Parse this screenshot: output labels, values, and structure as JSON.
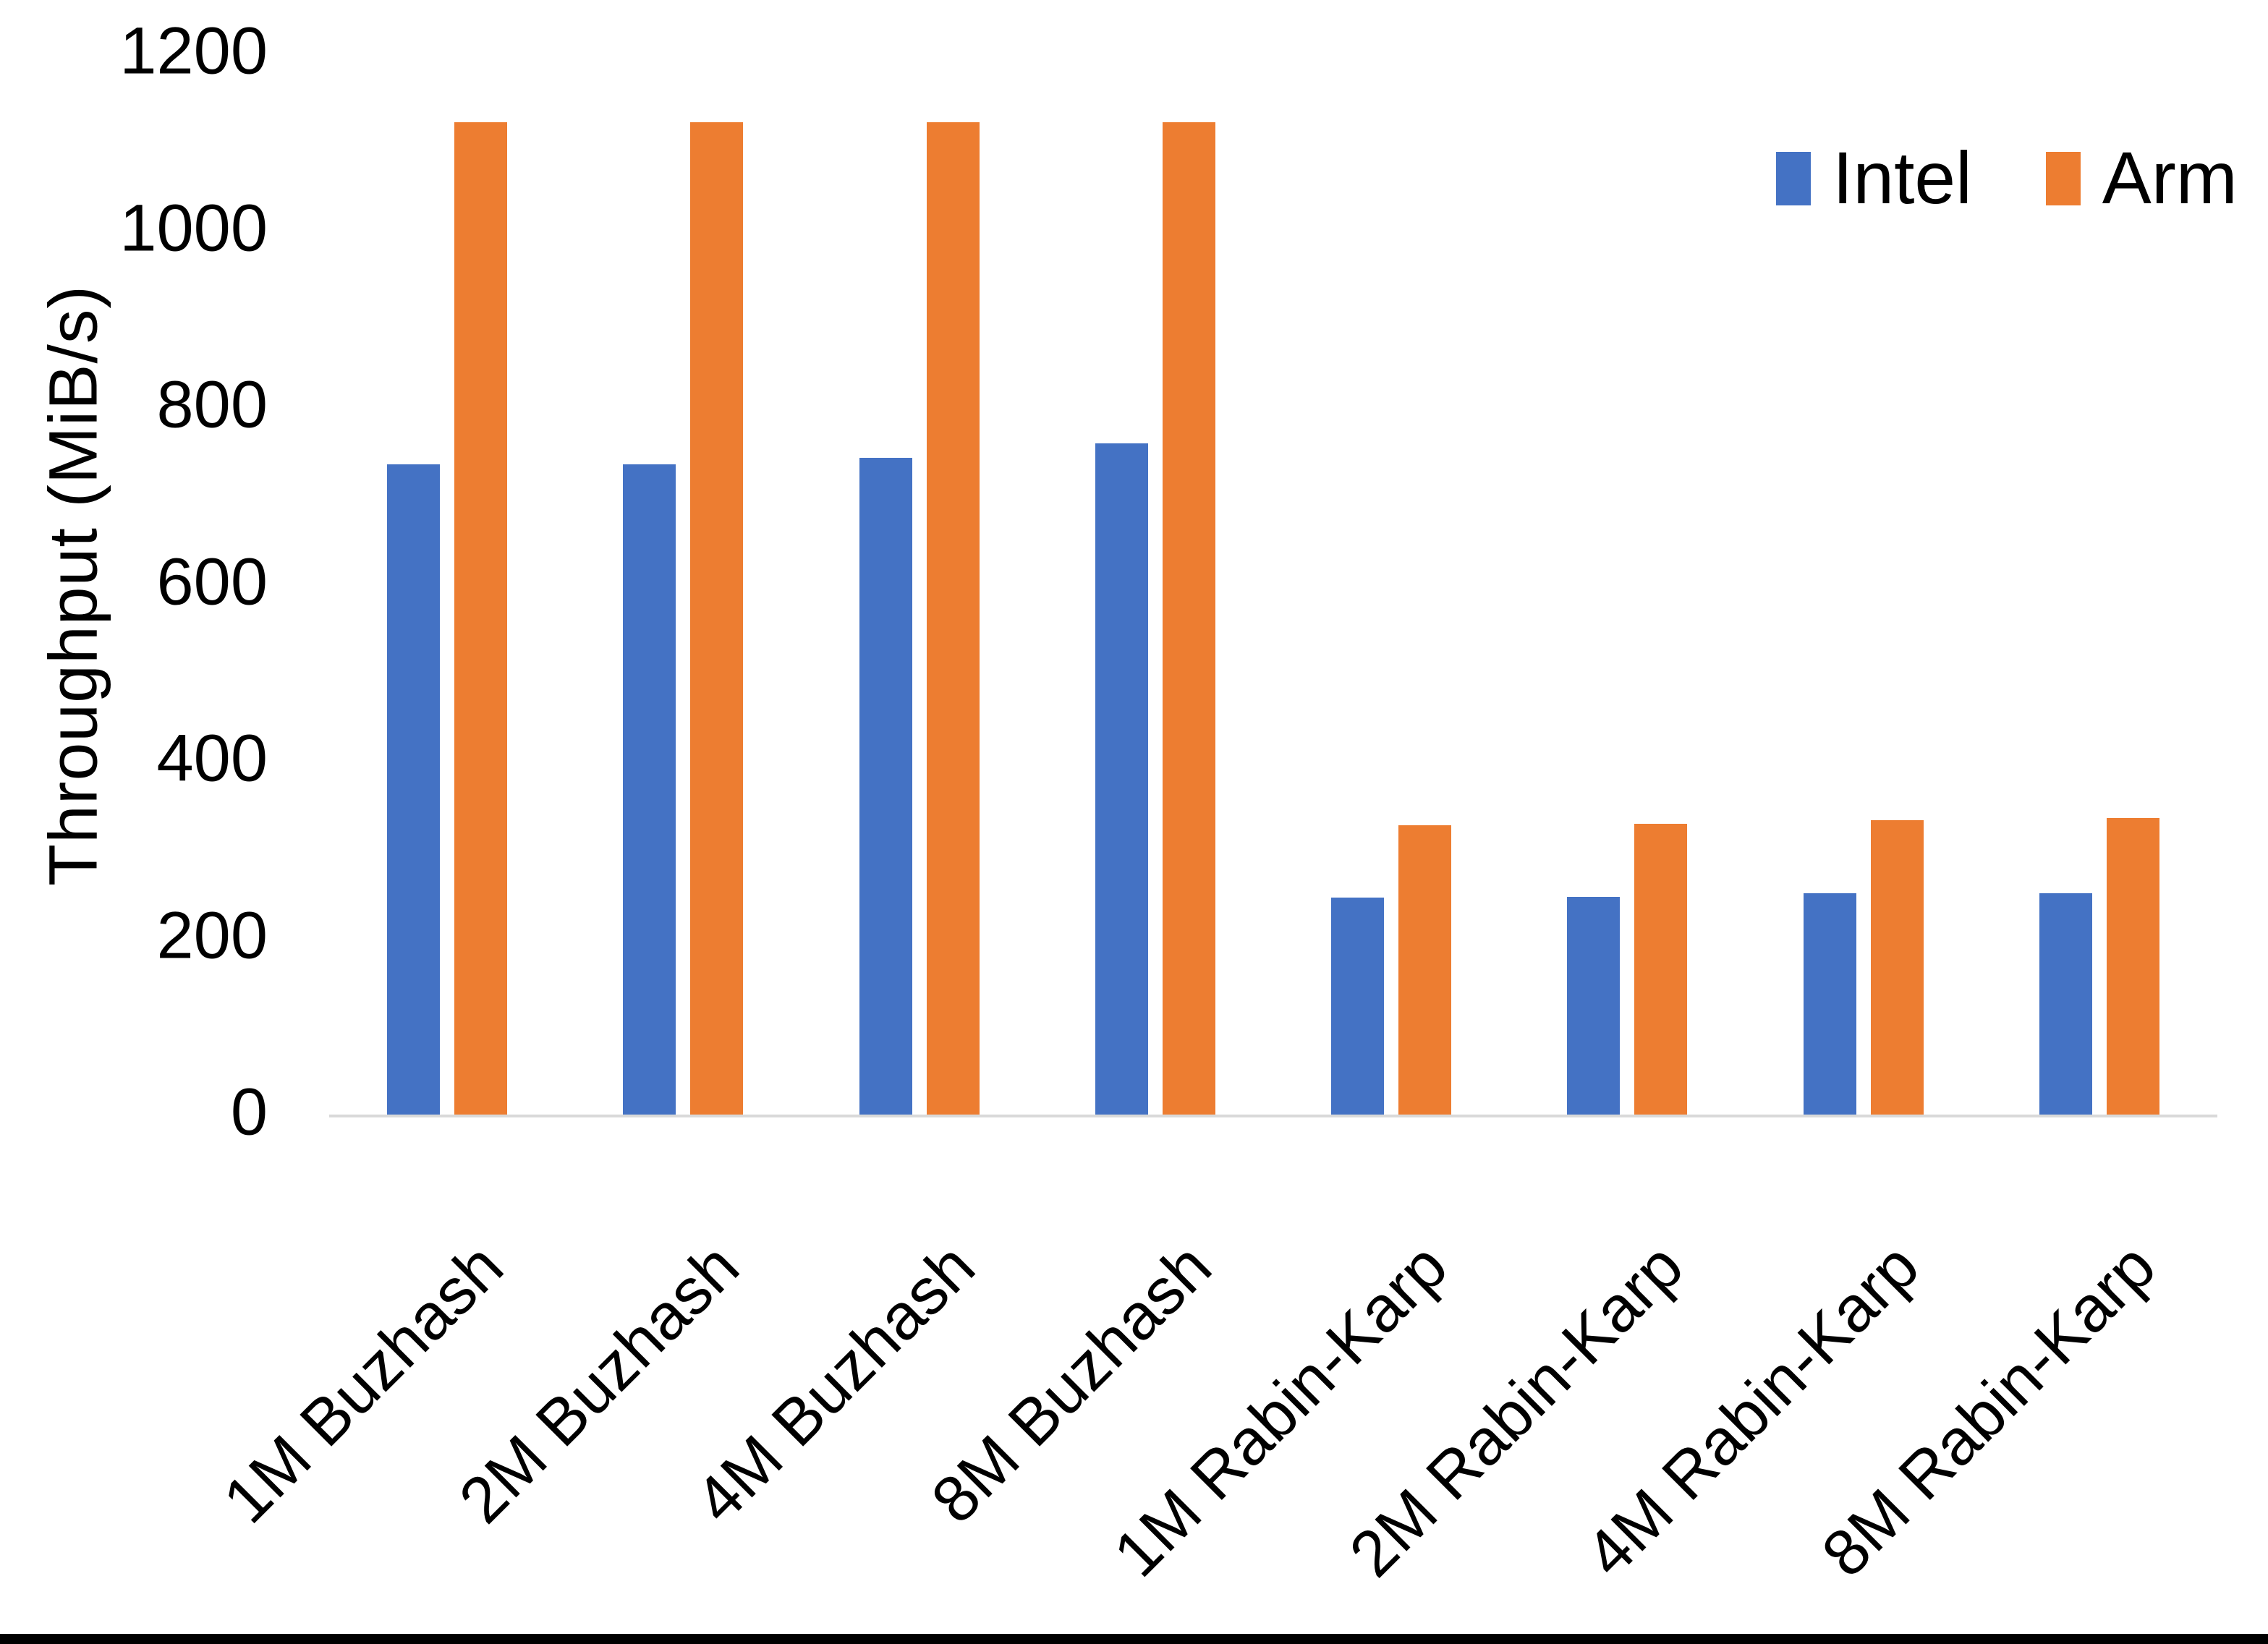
{
  "chart_data": {
    "type": "bar",
    "title": "",
    "xlabel": "",
    "ylabel": "Throughput (MiB/s)",
    "ylim": [
      0,
      1200
    ],
    "yticks": [
      0,
      200,
      400,
      600,
      800,
      1000,
      1200
    ],
    "grid": false,
    "legend_position": "top-right",
    "categories": [
      "1M Buzhash",
      "2M Buzhash",
      "4M Buzhash",
      "8M Buzhash",
      "1M Rabin-Karp",
      "2M Rabin-Karp",
      "4M Rabin-Karp",
      "8M Rabin-Karp"
    ],
    "series": [
      {
        "name": "Intel",
        "color": "#4472C4",
        "values": [
          735,
          735,
          743,
          759,
          245,
          246,
          250,
          250
        ]
      },
      {
        "name": "Arm",
        "color": "#ED7D31",
        "values": [
          1122,
          1122,
          1122,
          1122,
          327,
          329,
          333,
          335
        ]
      }
    ]
  },
  "colors": {
    "intel": "#4472C4",
    "arm": "#ED7D31",
    "axis_line": "#D9D9D9",
    "text": "#000000",
    "background": "#FFFFFF",
    "bottom_border": "#000000"
  }
}
